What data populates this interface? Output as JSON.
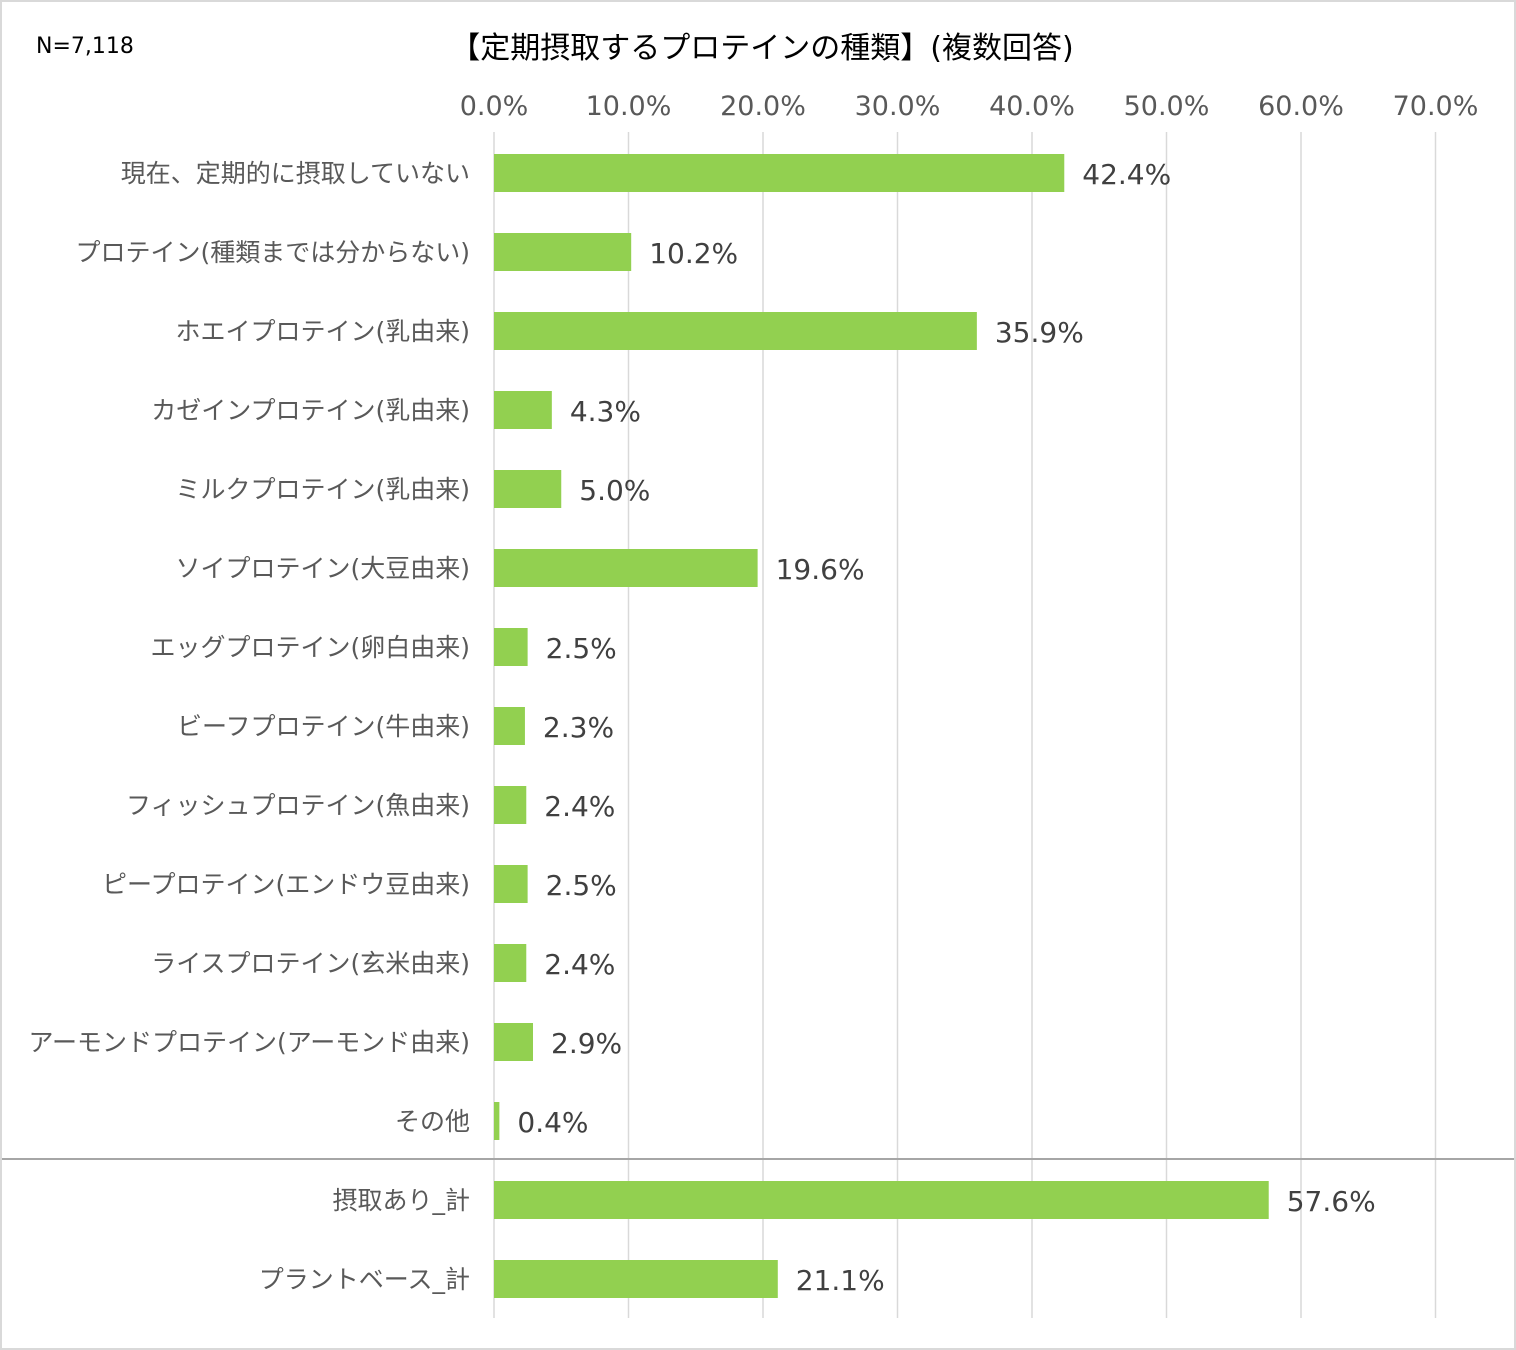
{
  "chart_data": {
    "type": "bar",
    "orientation": "horizontal",
    "title": "【定期摂取するプロテインの種類】(複数回答)",
    "sample_size": "N=7,118",
    "xlim": [
      0,
      70
    ],
    "x_ticks": [
      "0.0%",
      "10.0%",
      "20.0%",
      "30.0%",
      "40.0%",
      "50.0%",
      "60.0%",
      "70.0%"
    ],
    "x_tick_values": [
      0,
      10,
      20,
      30,
      40,
      50,
      60,
      70
    ],
    "x_axis_position": "top",
    "grid": true,
    "bar_color": "#92d050",
    "categories": [
      "現在、定期的に摂取していない",
      "プロテイン(種類までは分からない)",
      "ホエイプロテイン(乳由来)",
      "カゼインプロテイン(乳由来)",
      "ミルクプロテイン(乳由来)",
      "ソイプロテイン(大豆由来)",
      "エッグプロテイン(卵白由来)",
      "ビーフプロテイン(牛由来)",
      "フィッシュプロテイン(魚由来)",
      "ピープロテイン(エンドウ豆由来)",
      "ライスプロテイン(玄米由来)",
      "アーモンドプロテイン(アーモンド由来)",
      "その他",
      "摂取あり_計",
      "プラントベース_計"
    ],
    "values": [
      42.4,
      10.2,
      35.9,
      4.3,
      5.0,
      19.6,
      2.5,
      2.3,
      2.4,
      2.5,
      2.4,
      2.9,
      0.4,
      57.6,
      21.1
    ],
    "data_labels": [
      "42.4%",
      "10.2%",
      "35.9%",
      "4.3%",
      "5.0%",
      "19.6%",
      "2.5%",
      "2.3%",
      "2.4%",
      "2.5%",
      "2.4%",
      "2.9%",
      "0.4%",
      "57.6%",
      "21.1%"
    ],
    "separator_before_index": 13
  }
}
